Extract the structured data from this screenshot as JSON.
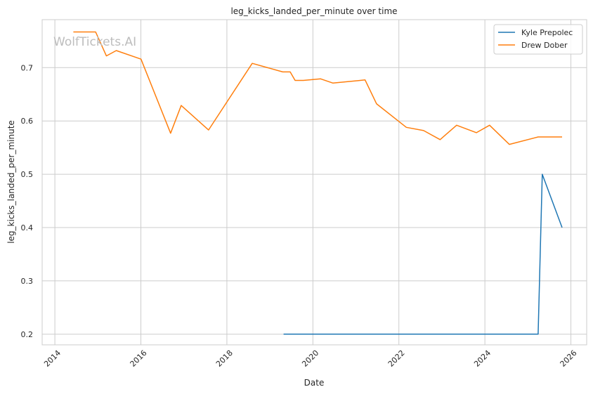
{
  "chart_data": {
    "type": "line",
    "title": "leg_kicks_landed_per_minute over time",
    "xlabel": "Date",
    "ylabel": "leg_kicks_landed_per_minute",
    "watermark": "WolfTickets.AI",
    "x_ticks": [
      "2014",
      "2016",
      "2018",
      "2020",
      "2022",
      "2024",
      "2026"
    ],
    "y_ticks": [
      "0.2",
      "0.3",
      "0.4",
      "0.5",
      "0.6",
      "0.7"
    ],
    "xlim": [
      "2013-09-15",
      "2026-05-15"
    ],
    "ylim": [
      0.18,
      0.79
    ],
    "grid": true,
    "legend_position": "top-right",
    "series": [
      {
        "name": "Kyle Prepolec",
        "color": "#1f77b4",
        "points": [
          [
            "2019-04-27",
            0.2
          ],
          [
            "2025-03-29",
            0.2
          ],
          [
            "2025-05-03",
            0.5
          ],
          [
            "2025-10-18",
            0.4
          ]
        ]
      },
      {
        "name": "Drew Dober",
        "color": "#ff7f0e",
        "points": [
          [
            "2014-06-07",
            0.767
          ],
          [
            "2014-12-13",
            0.767
          ],
          [
            "2015-03-14",
            0.722
          ],
          [
            "2015-06-06",
            0.732
          ],
          [
            "2016-01-02",
            0.716
          ],
          [
            "2016-09-10",
            0.577
          ],
          [
            "2016-12-09",
            0.629
          ],
          [
            "2017-07-29",
            0.583
          ],
          [
            "2018-08-04",
            0.708
          ],
          [
            "2019-04-20",
            0.692
          ],
          [
            "2019-06-22",
            0.692
          ],
          [
            "2019-08-03",
            0.676
          ],
          [
            "2019-10-12",
            0.676
          ],
          [
            "2020-03-07",
            0.679
          ],
          [
            "2020-06-20",
            0.671
          ],
          [
            "2021-03-20",
            0.677
          ],
          [
            "2021-06-26",
            0.632
          ],
          [
            "2022-03-05",
            0.588
          ],
          [
            "2022-07-30",
            0.582
          ],
          [
            "2022-12-17",
            0.565
          ],
          [
            "2023-05-06",
            0.592
          ],
          [
            "2023-10-21",
            0.578
          ],
          [
            "2024-02-10",
            0.592
          ],
          [
            "2024-07-27",
            0.556
          ],
          [
            "2025-03-29",
            0.57
          ],
          [
            "2025-10-18",
            0.57
          ]
        ]
      }
    ]
  }
}
